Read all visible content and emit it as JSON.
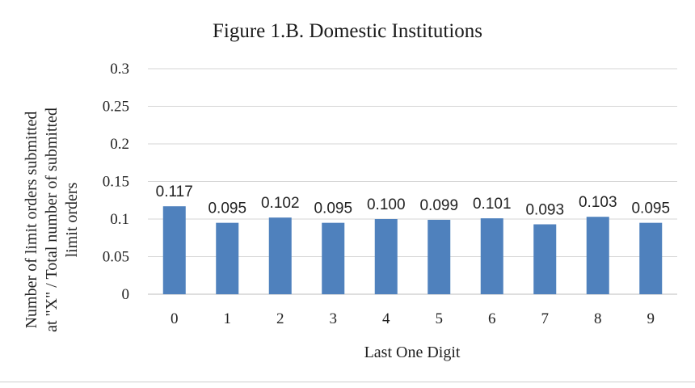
{
  "chart_data": {
    "type": "bar",
    "title": "Figure 1.B. Domestic Institutions",
    "xlabel": "Last One Digit",
    "ylabel_lines": [
      "Number of limit orders submitted",
      "at \"X\" / Total number of submitted",
      "limit orders"
    ],
    "categories": [
      "0",
      "1",
      "2",
      "3",
      "4",
      "5",
      "6",
      "7",
      "8",
      "9"
    ],
    "values": [
      0.117,
      0.095,
      0.102,
      0.095,
      0.1,
      0.099,
      0.101,
      0.093,
      0.103,
      0.095
    ],
    "data_labels": [
      "0.117",
      "0.095",
      "0.102",
      "0.095",
      "0.100",
      "0.099",
      "0.101",
      "0.093",
      "0.103",
      "0.095"
    ],
    "ylim": [
      0,
      0.3
    ],
    "yticks": [
      0,
      0.05,
      0.1,
      0.15,
      0.2,
      0.25,
      0.3
    ],
    "ytick_labels": [
      "0",
      "0.05",
      "0.1",
      "0.15",
      "0.2",
      "0.25",
      "0.3"
    ],
    "grid": true,
    "legend": "none",
    "bar_color": "#4f81bd"
  }
}
